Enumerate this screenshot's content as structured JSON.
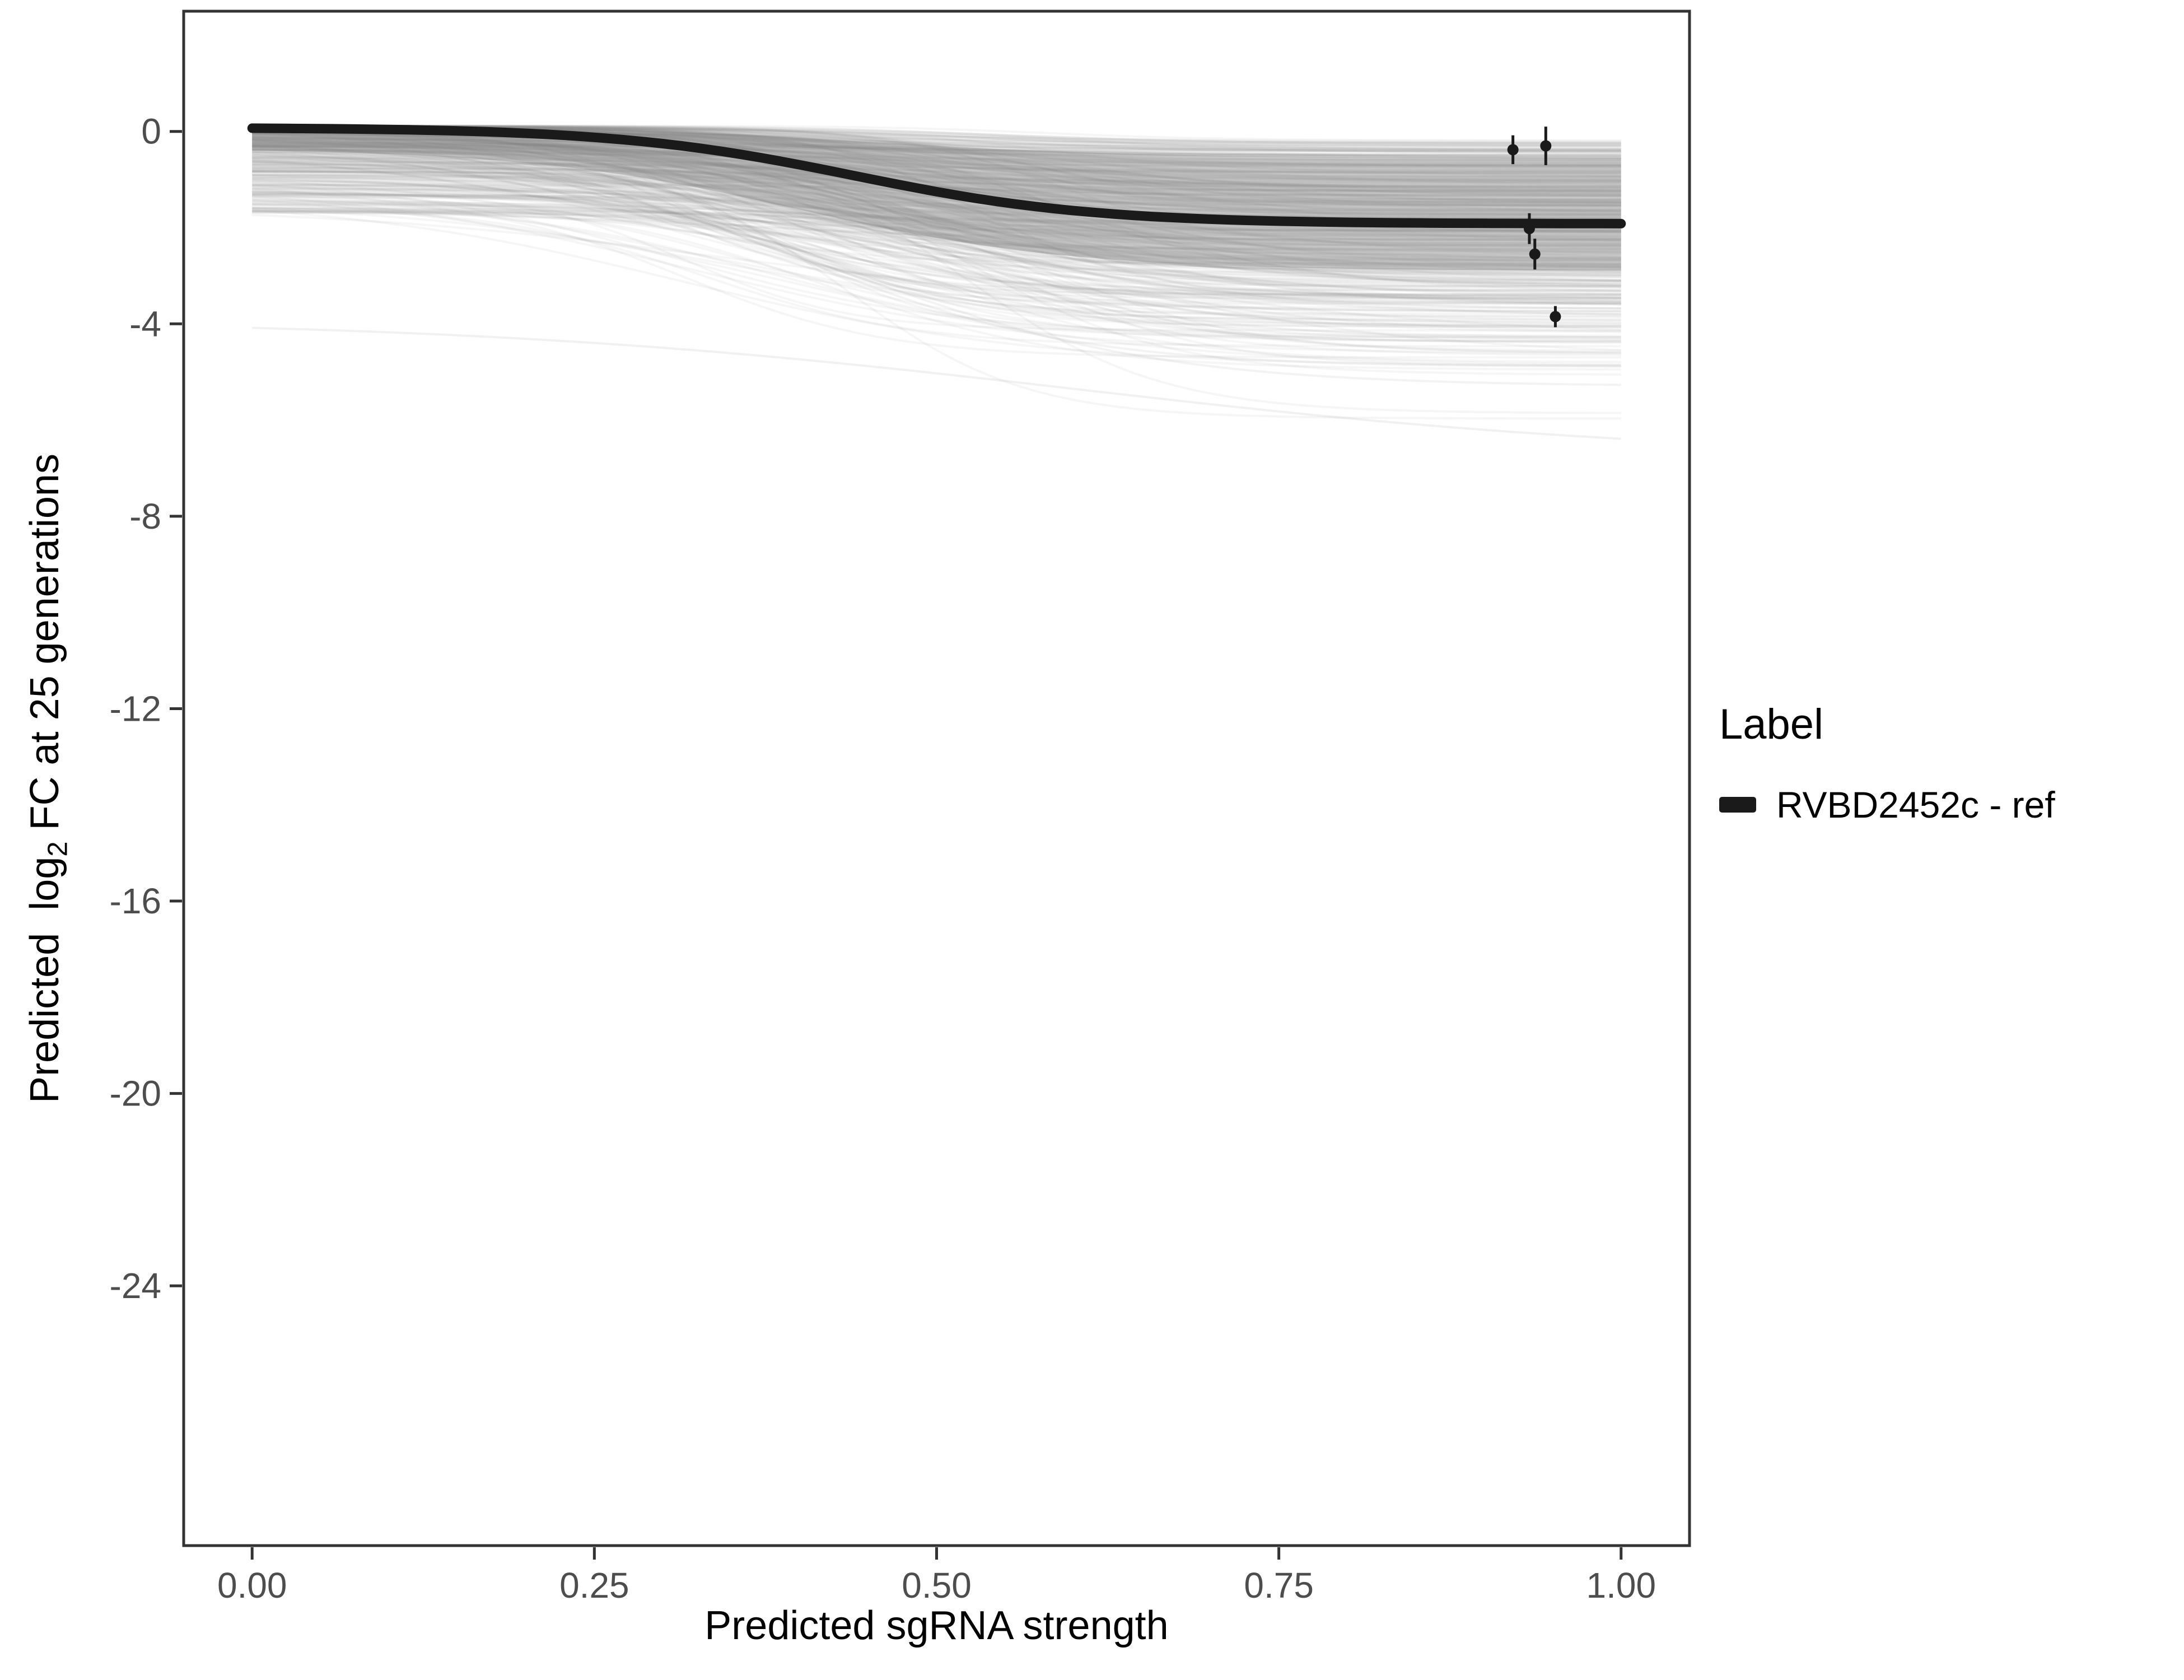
{
  "figure": {
    "background": "#ffffff",
    "panel_border_color": "#333333",
    "tick_color": "#333333",
    "tick_label_color": "#4d4d4d",
    "axis_title_color": "#000000"
  },
  "axes": {
    "x_title": "Predicted sgRNA strength",
    "y_title_prefix": "Predicted  log",
    "y_title_sub": "2",
    "y_title_suffix": " FC at 25 generations"
  },
  "legend": {
    "title": "Label",
    "entries": [
      {
        "label": "RVBD2452c - ref",
        "color": "#1a1a1a"
      }
    ]
  },
  "chart_data": {
    "type": "line",
    "title": "",
    "xlabel": "Predicted sgRNA strength",
    "ylabel": "Predicted log2 FC at 25 generations",
    "xlim": [
      -0.05,
      1.05
    ],
    "ylim": [
      -29.4,
      2.5
    ],
    "grid": false,
    "legend_position": "right",
    "x_tick_values": [
      0,
      0.25,
      0.5,
      0.75,
      1.0
    ],
    "x_tick_labels": [
      "0.00",
      "0.25",
      "0.50",
      "0.75",
      "1.00"
    ],
    "y_tick_values": [
      0,
      -4,
      -8,
      -12,
      -16,
      -20,
      -24
    ],
    "y_tick_labels": [
      "0",
      "-4",
      "-8",
      "-12",
      "-16",
      "-20",
      "-24"
    ],
    "main_series": {
      "name": "RVBD2452c - ref",
      "model": "sigmoid",
      "start": 0.08,
      "plateau": -1.92,
      "x0": 0.44,
      "k": 11.5,
      "color": "#1a1a1a",
      "stroke_width": 17,
      "sample_values": [
        {
          "x": 0.0,
          "y": 0.07
        },
        {
          "x": 0.25,
          "y": -0.12
        },
        {
          "x": 0.5,
          "y": -1.25
        },
        {
          "x": 0.75,
          "y": -1.86
        },
        {
          "x": 1.0,
          "y": -1.92
        }
      ]
    },
    "ribbon": {
      "upper": {
        "start": 0.12,
        "plateau": -0.55,
        "x0": 0.45,
        "k": 10
      },
      "lower": {
        "start": -0.35,
        "plateau": -2.9,
        "x0": 0.4,
        "k": 10
      },
      "color": "#7f7f7f",
      "opacity": 0.38
    },
    "ensemble": {
      "description": "posterior draw curves (gray)",
      "count": 420,
      "seed": 11,
      "color": "#8c8c8c",
      "opacity": 0.075,
      "stroke_width": 4,
      "start_min": -1.7,
      "start_max": 0.12,
      "drop_min": 0.3,
      "drop_max": 3.6,
      "x0_min": 0.3,
      "x0_max": 0.6,
      "k_min": 6,
      "k_max": 17
    },
    "faint_outliers": [
      {
        "start": -3.9,
        "plateau": -6.8,
        "x0": 0.6,
        "k": 4.5,
        "opacity": 0.12
      },
      {
        "start": -0.9,
        "plateau": -5.3,
        "x0": 0.45,
        "k": 9,
        "opacity": 0.1
      },
      {
        "start": -0.4,
        "plateau": -4.9,
        "x0": 0.4,
        "k": 10,
        "opacity": 0.1
      }
    ],
    "points": [
      {
        "x": 0.921,
        "y": -0.38,
        "err": 0.3
      },
      {
        "x": 0.945,
        "y": -0.3,
        "err": 0.4
      },
      {
        "x": 0.933,
        "y": -2.02,
        "err": 0.32
      },
      {
        "x": 0.937,
        "y": -2.55,
        "err": 0.32
      },
      {
        "x": 0.952,
        "y": -3.85,
        "err": 0.22
      }
    ],
    "points_color": "#1a1a1a"
  }
}
